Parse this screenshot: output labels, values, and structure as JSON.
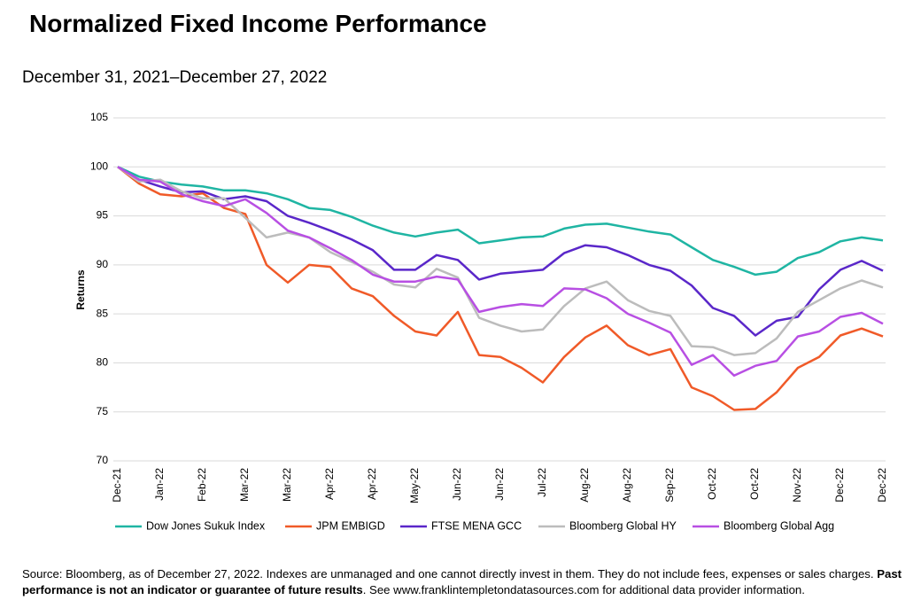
{
  "chart_data": {
    "type": "line",
    "title": "Normalized Fixed Income Performance",
    "subtitle": "December 31, 2021–December 27, 2022",
    "y_label": "Returns",
    "categories": [
      "Dec-21",
      null,
      "Jan-22",
      null,
      "Feb-22",
      null,
      "Mar-22",
      null,
      "Mar-22",
      null,
      "Apr-22",
      null,
      "Apr-22",
      null,
      "May-22",
      null,
      "Jun-22",
      null,
      "Jun-22",
      null,
      "Jul-22",
      null,
      "Aug-22",
      null,
      "Aug-22",
      null,
      "Sep-22",
      null,
      "Oct-22",
      null,
      "Oct-22",
      null,
      "Nov-22",
      null,
      "Dec-22",
      null,
      "Dec-22"
    ],
    "ylim": [
      70,
      105
    ],
    "yticks": [
      70,
      75,
      80,
      85,
      90,
      95,
      100,
      105
    ],
    "grid": true,
    "legend": "bottom",
    "series": [
      {
        "name": "Dow Jones Sukuk Index",
        "color": "#1fb5a3",
        "values": [
          100,
          99,
          98.5,
          98.2,
          98,
          97.6,
          97.6,
          97.3,
          96.7,
          95.8,
          95.6,
          94.9,
          94,
          93.3,
          92.9,
          93.3,
          93.6,
          92.2,
          92.5,
          92.8,
          92.9,
          93.7,
          94.1,
          94.2,
          93.8,
          93.4,
          93.1,
          91.8,
          90.5,
          89.8,
          89,
          89.3,
          90.7,
          91.3,
          92.4,
          92.8,
          92.5
        ]
      },
      {
        "name": "JPM EMBIGD",
        "color": "#f05a28",
        "values": [
          100,
          98.3,
          97.2,
          97,
          97.3,
          95.8,
          95.2,
          90,
          88.2,
          90,
          89.8,
          87.6,
          86.8,
          84.8,
          83.2,
          82.8,
          85.2,
          80.8,
          80.6,
          79.5,
          78,
          80.6,
          82.6,
          83.8,
          81.8,
          80.8,
          81.4,
          77.5,
          76.6,
          75.2,
          75.3,
          77,
          79.5,
          80.6,
          82.8,
          83.5,
          82.7
        ]
      },
      {
        "name": "FTSE MENA GCC",
        "color": "#5a27c9",
        "values": [
          100,
          98.7,
          98,
          97.4,
          97.5,
          96.7,
          97,
          96.5,
          95,
          94.3,
          93.5,
          92.6,
          91.5,
          89.5,
          89.5,
          91,
          90.5,
          88.5,
          89.1,
          89.3,
          89.5,
          91.2,
          92,
          91.8,
          91,
          90,
          89.4,
          87.9,
          85.6,
          84.8,
          82.8,
          84.3,
          84.7,
          87.5,
          89.5,
          90.4,
          89.4
        ]
      },
      {
        "name": "Bloomberg Global HY",
        "color": "#bcbcbc",
        "values": [
          100,
          98.5,
          98.7,
          97.5,
          96.8,
          96.8,
          94.8,
          92.8,
          93.3,
          92.8,
          91.3,
          90.3,
          89.3,
          88,
          87.7,
          89.6,
          88.7,
          84.6,
          83.8,
          83.2,
          83.4,
          85.8,
          87.6,
          88.3,
          86.4,
          85.3,
          84.8,
          81.7,
          81.6,
          80.8,
          81,
          82.5,
          85.2,
          86.4,
          87.6,
          88.4,
          87.7
        ]
      },
      {
        "name": "Bloomberg Global Agg",
        "color": "#b84fe3",
        "values": [
          100,
          98.7,
          98.5,
          97.2,
          96.5,
          96,
          96.7,
          95.3,
          93.5,
          92.8,
          91.7,
          90.5,
          89,
          88.3,
          88.3,
          88.8,
          88.5,
          85.2,
          85.7,
          86,
          85.8,
          87.6,
          87.5,
          86.6,
          85,
          84.1,
          83.1,
          79.8,
          80.8,
          78.7,
          79.7,
          80.2,
          82.7,
          83.2,
          84.7,
          85.1,
          84
        ]
      }
    ],
    "footer": {
      "text": "Source: Bloomberg, as of December 27, 2022. Indexes are unmanaged and one cannot directly invest in them. They do not include fees, expenses or sales charges. ",
      "bold": "Past performance is not an indicator or guarantee of future results",
      "text_end": ". See www.franklintempletondatasources.com for additional data provider information."
    }
  }
}
